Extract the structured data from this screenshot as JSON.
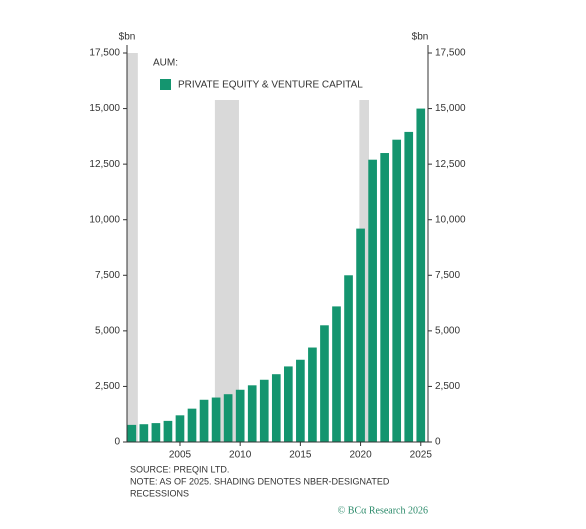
{
  "chart_data": {
    "type": "bar",
    "left_unit": "$bn",
    "right_unit": "$bn",
    "legend_title": "AUM:",
    "x": [
      2001,
      2002,
      2003,
      2004,
      2005,
      2006,
      2007,
      2008,
      2009,
      2010,
      2011,
      2012,
      2013,
      2014,
      2015,
      2016,
      2017,
      2018,
      2019,
      2020,
      2021,
      2022,
      2023,
      2024,
      2025
    ],
    "series": [
      {
        "name": "PRIVATE EQUITY & VENTURE CAPITAL",
        "color": "#14956f",
        "values": [
          770,
          800,
          850,
          950,
          1200,
          1500,
          1900,
          2000,
          2150,
          2350,
          2550,
          2800,
          3050,
          3400,
          3700,
          4250,
          5250,
          6100,
          7500,
          9600,
          12700,
          13000,
          13600,
          13950,
          15000
        ]
      }
    ],
    "recessions": [
      [
        2000.6,
        2001.5
      ],
      [
        2007.9,
        2009.9
      ],
      [
        2019.9,
        2020.7
      ]
    ],
    "recession_color": "#d9d9d9",
    "xlim": [
      2000.6,
      2025.6
    ],
    "xticks": [
      2005,
      2010,
      2015,
      2020,
      2025
    ],
    "ylim": [
      0,
      17500
    ],
    "yticks": [
      0,
      {
        "value": 2500,
        "label": "2,500"
      },
      {
        "value": 5000,
        "label": "5,000"
      },
      {
        "value": 7500,
        "label": "7,500"
      },
      {
        "value": 10000,
        "label": "10,000"
      },
      {
        "value": 12500,
        "label": "12,500"
      },
      {
        "value": 15000,
        "label": "15,000"
      },
      {
        "value": 17500,
        "label": "17,500"
      }
    ],
    "y2lim": [
      0,
      17500
    ],
    "y2ticks": [
      0,
      {
        "value": 2500,
        "label": "2,500"
      },
      {
        "value": 5000,
        "label": "5,000"
      },
      {
        "value": 7500,
        "label": "7,500"
      },
      {
        "value": 10000,
        "label": "10,000"
      },
      {
        "value": 12500,
        "label": "12,500"
      },
      {
        "value": 15000,
        "label": "15,000"
      },
      {
        "value": 17500,
        "label": "17,500"
      }
    ],
    "notes": [
      "SOURCE: PREQIN LTD.",
      "NOTE: AS OF 2025. SHADING DENOTES NBER-DESIGNATED",
      "RECESSIONS"
    ],
    "credit": "© BCα Research 2026"
  }
}
